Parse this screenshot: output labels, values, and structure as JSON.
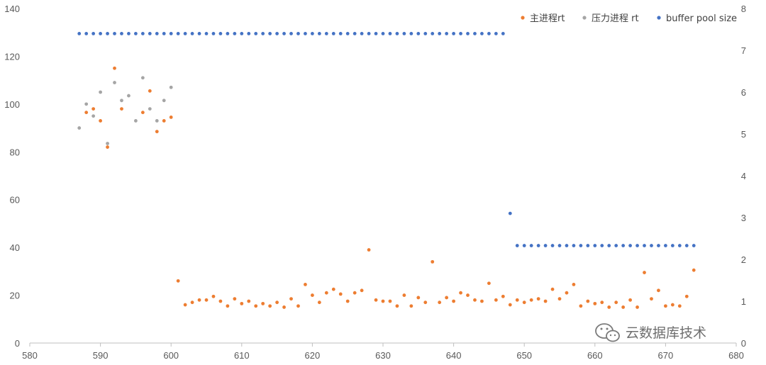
{
  "watermark": {
    "text": "云数据库技术",
    "icon": "wechat-icon"
  },
  "chart_data": {
    "type": "scatter",
    "title": "",
    "xlabel": "",
    "ylabel": "",
    "y2label": "",
    "xlim": [
      580,
      680
    ],
    "ylim": [
      0,
      140
    ],
    "y2lim": [
      0,
      8
    ],
    "x_ticks": [
      580,
      590,
      600,
      610,
      620,
      630,
      640,
      650,
      660,
      670,
      680
    ],
    "y_ticks": [
      0,
      20,
      40,
      60,
      80,
      100,
      120,
      140
    ],
    "y2_ticks": [
      0,
      1,
      2,
      3,
      4,
      5,
      6,
      7,
      8
    ],
    "grid": false,
    "legend": "top-right",
    "series": [
      {
        "name": "主进程rt",
        "color": "#ED7D31",
        "axis": "left",
        "x": [
          588,
          589,
          590,
          591,
          592,
          593,
          596,
          597,
          598,
          599,
          600,
          601,
          602,
          603,
          604,
          605,
          606,
          607,
          608,
          609,
          610,
          611,
          612,
          613,
          614,
          615,
          616,
          617,
          618,
          619,
          620,
          621,
          622,
          623,
          624,
          625,
          626,
          627,
          628,
          629,
          630,
          631,
          632,
          633,
          634,
          635,
          636,
          637,
          638,
          639,
          640,
          641,
          642,
          643,
          644,
          645,
          646,
          647,
          648,
          649,
          650,
          651,
          652,
          653,
          654,
          655,
          656,
          657,
          658,
          659,
          660,
          661,
          662,
          663,
          664,
          665,
          666,
          667,
          668,
          669,
          670,
          671,
          672,
          673,
          674
        ],
        "y": [
          96.5,
          98,
          93,
          82,
          115,
          98,
          96.5,
          105.5,
          88.5,
          93,
          94.5,
          26,
          16,
          17,
          18,
          18,
          19.5,
          17.5,
          15.5,
          18.5,
          16.5,
          17.5,
          15.5,
          16.5,
          15.5,
          17,
          15,
          18.5,
          15.5,
          24.5,
          20,
          17,
          21,
          22.5,
          20.5,
          17.5,
          21,
          22,
          39,
          18,
          17.5,
          17.5,
          15.5,
          20,
          15.5,
          19,
          17,
          34,
          17,
          19,
          17.5,
          21,
          20,
          18,
          17.5,
          25,
          18,
          19.5,
          16,
          18,
          17,
          18,
          18.5,
          17.5,
          22.5,
          18.5,
          21,
          24.5,
          15.5,
          17.5,
          16.5,
          17,
          15,
          17,
          15,
          18,
          15,
          29.5,
          18.5,
          22,
          15.5,
          16,
          15.5,
          19.5,
          30.5
        ]
      },
      {
        "name": "压力进程 rt",
        "color": "#A5A5A5",
        "axis": "left",
        "x": [
          587,
          588,
          589,
          590,
          591,
          592,
          593,
          594,
          595,
          596,
          597,
          598,
          599,
          600
        ],
        "y": [
          90,
          100,
          95,
          105,
          83.5,
          109,
          101.5,
          103.5,
          93,
          111,
          98,
          93,
          101.5,
          107
        ]
      },
      {
        "name": "buffer pool size",
        "color": "#4472C4",
        "axis": "right",
        "segments": [
          {
            "x_from": 587,
            "x_to": 647,
            "step": 1,
            "value": 7.4
          },
          {
            "x_from": 648,
            "x_to": 648,
            "step": 1,
            "value": 3.1
          },
          {
            "x_from": 649,
            "x_to": 674,
            "step": 1,
            "value": 2.33
          }
        ]
      }
    ]
  }
}
